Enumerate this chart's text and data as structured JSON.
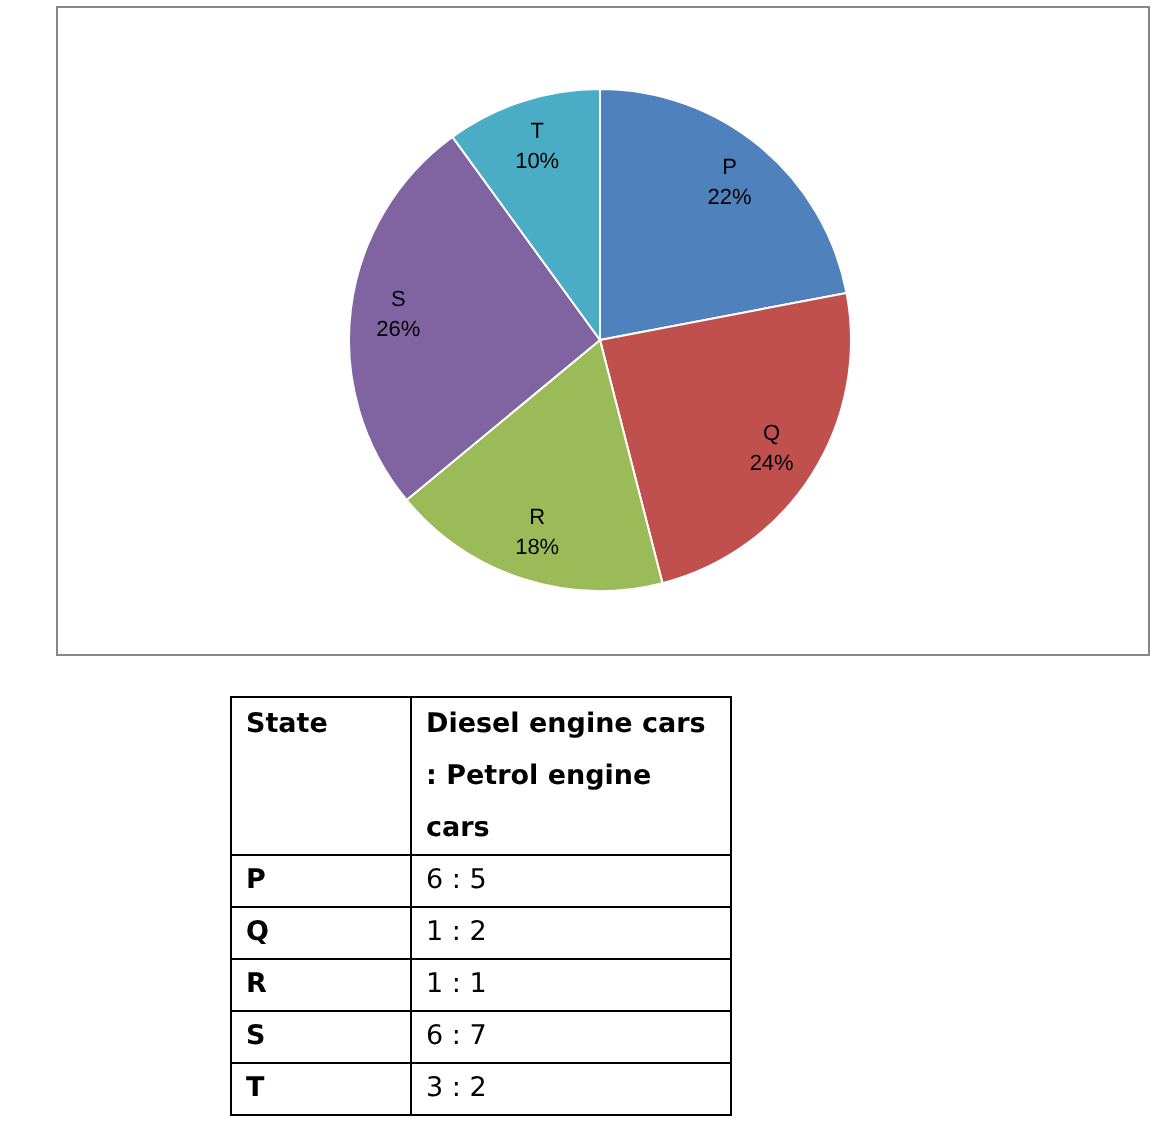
{
  "chart_data": [
    {
      "type": "pie",
      "categories": [
        "P",
        "Q",
        "R",
        "S",
        "T"
      ],
      "values": [
        22,
        24,
        18,
        26,
        10
      ],
      "colors": [
        "#4f81bd",
        "#c0504d",
        "#9bbb59",
        "#8064a2",
        "#4bacc6"
      ],
      "value_labels": [
        "22%",
        "24%",
        "18%",
        "26%",
        "10%"
      ]
    },
    {
      "type": "other",
      "annotations": [
        "State",
        "Diesel engine cars : Petrol engine cars",
        "P",
        "6 : 5",
        "Q",
        "1 : 2",
        "R",
        "1 : 1",
        "S",
        "6 : 7",
        "T",
        "3 : 2"
      ]
    }
  ]
}
